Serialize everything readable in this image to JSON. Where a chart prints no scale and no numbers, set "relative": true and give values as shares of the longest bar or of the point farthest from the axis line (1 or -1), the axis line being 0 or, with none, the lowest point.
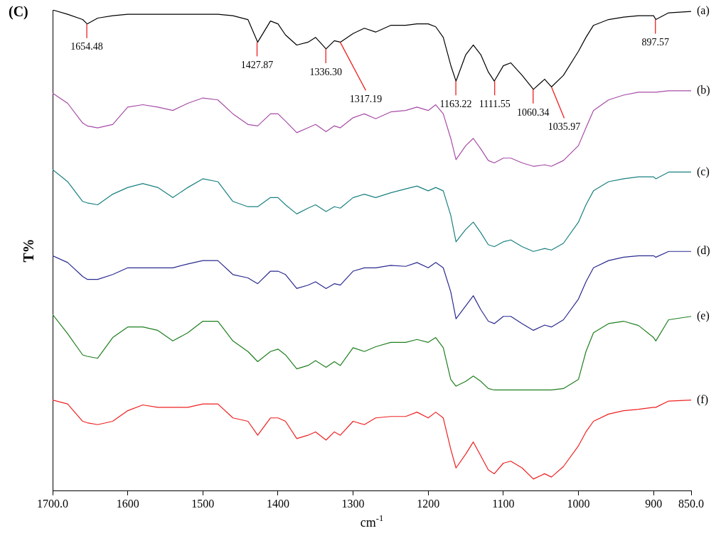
{
  "chart_data": {
    "type": "line",
    "title": "(C)",
    "xlabel": "cm$^{-1}$",
    "ylabel": "T%",
    "relative": true,
    "xlim": [
      1700,
      850
    ],
    "xticks": [
      {
        "value": 1700,
        "label": "1700.0"
      },
      1600,
      1500,
      1400,
      1300,
      1200,
      1100,
      1000,
      900,
      {
        "value": 850,
        "label": "850.0"
      }
    ],
    "grid": false,
    "legend": false,
    "marker": "none",
    "line_style": "solid",
    "x": [
      1700,
      1680,
      1660,
      1654,
      1640,
      1620,
      1600,
      1580,
      1560,
      1540,
      1520,
      1500,
      1480,
      1460,
      1440,
      1427,
      1410,
      1400,
      1390,
      1375,
      1360,
      1350,
      1336,
      1325,
      1317,
      1300,
      1285,
      1270,
      1250,
      1230,
      1215,
      1200,
      1190,
      1180,
      1170,
      1163,
      1150,
      1140,
      1130,
      1120,
      1112,
      1100,
      1090,
      1075,
      1060,
      1045,
      1036,
      1020,
      1000,
      990,
      980,
      960,
      940,
      920,
      900,
      897,
      880,
      850
    ],
    "series": [
      {
        "name": "(a)",
        "color": "#000000",
        "values": [
          1,
          0.991,
          0.98,
          0.971,
          0.983,
          0.988,
          0.991,
          0.991,
          0.991,
          0.991,
          0.991,
          0.991,
          0.991,
          0.988,
          0.98,
          0.933,
          0.977,
          0.971,
          0.948,
          0.927,
          0.933,
          0.943,
          0.919,
          0.936,
          0.933,
          0.951,
          0.962,
          0.954,
          0.968,
          0.968,
          0.971,
          0.971,
          0.965,
          0.943,
          0.885,
          0.852,
          0.907,
          0.927,
          0.907,
          0.871,
          0.852,
          0.884,
          0.89,
          0.864,
          0.835,
          0.856,
          0.84,
          0.864,
          0.914,
          0.943,
          0.968,
          0.98,
          0.985,
          0.988,
          0.988,
          0.98,
          0.994,
          0.997
        ]
      },
      {
        "name": "(b)",
        "color": "#a64ca6",
        "values": [
          0.827,
          0.806,
          0.765,
          0.759,
          0.755,
          0.762,
          0.798,
          0.803,
          0.798,
          0.791,
          0.806,
          0.817,
          0.813,
          0.784,
          0.762,
          0.759,
          0.784,
          0.784,
          0.769,
          0.745,
          0.755,
          0.762,
          0.747,
          0.759,
          0.755,
          0.776,
          0.784,
          0.774,
          0.788,
          0.791,
          0.798,
          0.791,
          0.803,
          0.784,
          0.733,
          0.689,
          0.718,
          0.733,
          0.711,
          0.687,
          0.682,
          0.692,
          0.692,
          0.682,
          0.675,
          0.678,
          0.675,
          0.687,
          0.718,
          0.755,
          0.791,
          0.813,
          0.823,
          0.829,
          0.829,
          0.829,
          0.832,
          0.832
        ]
      },
      {
        "name": "(c)",
        "color": "#1a8080",
        "values": [
          0.668,
          0.643,
          0.602,
          0.599,
          0.595,
          0.617,
          0.631,
          0.639,
          0.631,
          0.61,
          0.631,
          0.649,
          0.643,
          0.602,
          0.591,
          0.591,
          0.61,
          0.61,
          0.595,
          0.576,
          0.588,
          0.595,
          0.581,
          0.591,
          0.588,
          0.61,
          0.617,
          0.61,
          0.62,
          0.628,
          0.634,
          0.624,
          0.631,
          0.624,
          0.573,
          0.518,
          0.544,
          0.559,
          0.537,
          0.512,
          0.508,
          0.518,
          0.522,
          0.508,
          0.498,
          0.504,
          0.501,
          0.515,
          0.559,
          0.595,
          0.624,
          0.643,
          0.649,
          0.653,
          0.653,
          0.649,
          0.663,
          0.663
        ]
      },
      {
        "name": "(d)",
        "color": "#2a2a90",
        "values": [
          0.489,
          0.475,
          0.446,
          0.44,
          0.44,
          0.45,
          0.464,
          0.464,
          0.464,
          0.464,
          0.472,
          0.479,
          0.479,
          0.45,
          0.443,
          0.431,
          0.457,
          0.457,
          0.45,
          0.421,
          0.428,
          0.435,
          0.421,
          0.431,
          0.428,
          0.457,
          0.464,
          0.464,
          0.469,
          0.467,
          0.475,
          0.464,
          0.475,
          0.464,
          0.414,
          0.358,
          0.385,
          0.406,
          0.377,
          0.353,
          0.348,
          0.363,
          0.363,
          0.348,
          0.334,
          0.345,
          0.341,
          0.356,
          0.399,
          0.435,
          0.464,
          0.479,
          0.486,
          0.489,
          0.489,
          0.486,
          0.498,
          0.498
        ]
      },
      {
        "name": "(e)",
        "color": "#1f7f1f",
        "values": [
          0.367,
          0.327,
          0.283,
          0.28,
          0.276,
          0.319,
          0.341,
          0.341,
          0.334,
          0.312,
          0.329,
          0.353,
          0.353,
          0.312,
          0.29,
          0.269,
          0.29,
          0.295,
          0.283,
          0.254,
          0.261,
          0.271,
          0.257,
          0.269,
          0.261,
          0.298,
          0.29,
          0.3,
          0.309,
          0.309,
          0.315,
          0.309,
          0.319,
          0.298,
          0.232,
          0.218,
          0.228,
          0.239,
          0.228,
          0.213,
          0.21,
          0.21,
          0.21,
          0.21,
          0.21,
          0.21,
          0.21,
          0.213,
          0.232,
          0.29,
          0.329,
          0.348,
          0.353,
          0.344,
          0.319,
          0.312,
          0.356,
          0.363
        ]
      },
      {
        "name": "(f)",
        "color": "#ee2020",
        "values": [
          0.189,
          0.181,
          0.145,
          0.142,
          0.138,
          0.145,
          0.167,
          0.179,
          0.174,
          0.174,
          0.174,
          0.181,
          0.181,
          0.152,
          0.145,
          0.116,
          0.152,
          0.152,
          0.145,
          0.109,
          0.116,
          0.123,
          0.106,
          0.123,
          0.116,
          0.145,
          0.138,
          0.152,
          0.155,
          0.155,
          0.164,
          0.152,
          0.164,
          0.152,
          0.087,
          0.048,
          0.077,
          0.102,
          0.073,
          0.044,
          0.036,
          0.058,
          0.062,
          0.048,
          0.025,
          0.036,
          0.029,
          0.051,
          0.094,
          0.123,
          0.145,
          0.16,
          0.167,
          0.17,
          0.174,
          0.174,
          0.187,
          0.189
        ]
      }
    ],
    "annotations": [
      {
        "text": "1654.48",
        "x": 1654.48,
        "y": 0.971
      },
      {
        "text": "1427.87",
        "x": 1427.87,
        "y": 0.933
      },
      {
        "text": "1336.30",
        "x": 1336.3,
        "y": 0.919
      },
      {
        "text": "1317.19",
        "x": 1317.19,
        "y": 0.933
      },
      {
        "text": "1163.22",
        "x": 1163.22,
        "y": 0.852
      },
      {
        "text": "1111.55",
        "x": 1111.55,
        "y": 0.852
      },
      {
        "text": "1060.34",
        "x": 1060.34,
        "y": 0.835
      },
      {
        "text": "1035.97",
        "x": 1035.97,
        "y": 0.84
      },
      {
        "text": "897.57",
        "x": 897.57,
        "y": 0.98
      }
    ]
  }
}
